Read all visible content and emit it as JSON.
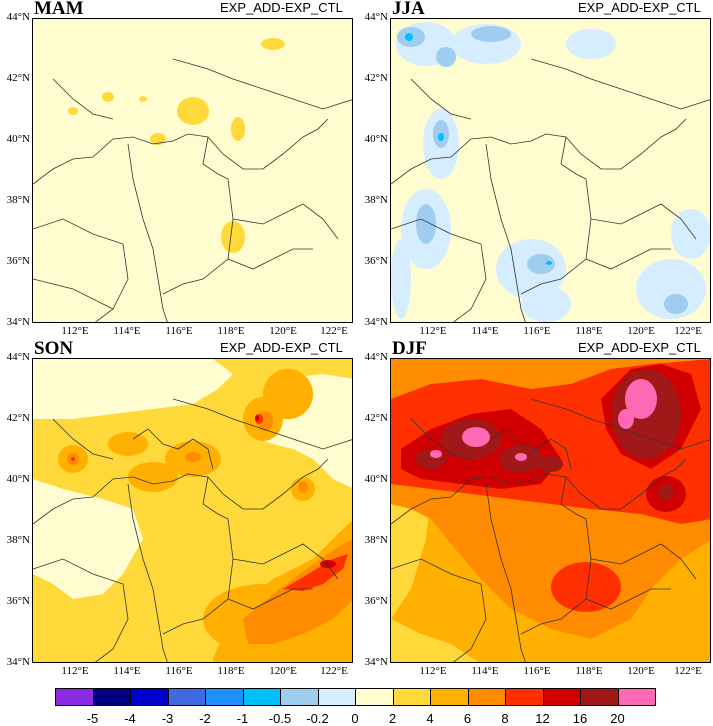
{
  "panels": [
    {
      "id": "mam",
      "title": "MAM",
      "subtitle": "EXP_ADD-EXP_CTL"
    },
    {
      "id": "jja",
      "title": "JJA",
      "subtitle": "EXP_ADD-EXP_CTL"
    },
    {
      "id": "son",
      "title": "SON",
      "subtitle": "EXP_ADD-EXP_CTL"
    },
    {
      "id": "djf",
      "title": "DJF",
      "subtitle": "EXP_ADD-EXP_CTL"
    }
  ],
  "lat_labels": [
    "44°N",
    "42°N",
    "40°N",
    "38°N",
    "36°N",
    "34°N"
  ],
  "lon_labels": [
    "112°E",
    "114°E",
    "116°E",
    "118°E",
    "120°E",
    "122°E"
  ],
  "colorbar": {
    "levels": [
      "-5",
      "-4",
      "-3",
      "-2",
      "-1",
      "-0.5",
      "-0.2",
      "0",
      "2",
      "4",
      "6",
      "8",
      "12",
      "16",
      "20"
    ],
    "colors": [
      "#8a2be2",
      "#000080",
      "#0000cd",
      "#4169e1",
      "#1e90ff",
      "#00bfff",
      "#9fcdf0",
      "#d6ecff",
      "#fffdd0",
      "#ffd93a",
      "#ffb000",
      "#ff8c00",
      "#ff3000",
      "#d00000",
      "#a01818",
      "#ff69b4"
    ]
  },
  "colors": {
    "background": "#fffdd0",
    "pos1": "#ffd93a",
    "pos2": "#ffb000",
    "pos3": "#ff8c00",
    "pos4": "#ff3000",
    "pos5": "#d00000",
    "pos6": "#a01818",
    "pos7": "#ff69b4",
    "neg1": "#d6ecff",
    "neg2": "#9fcdf0",
    "neg3": "#00bfff",
    "border": "#333333"
  }
}
